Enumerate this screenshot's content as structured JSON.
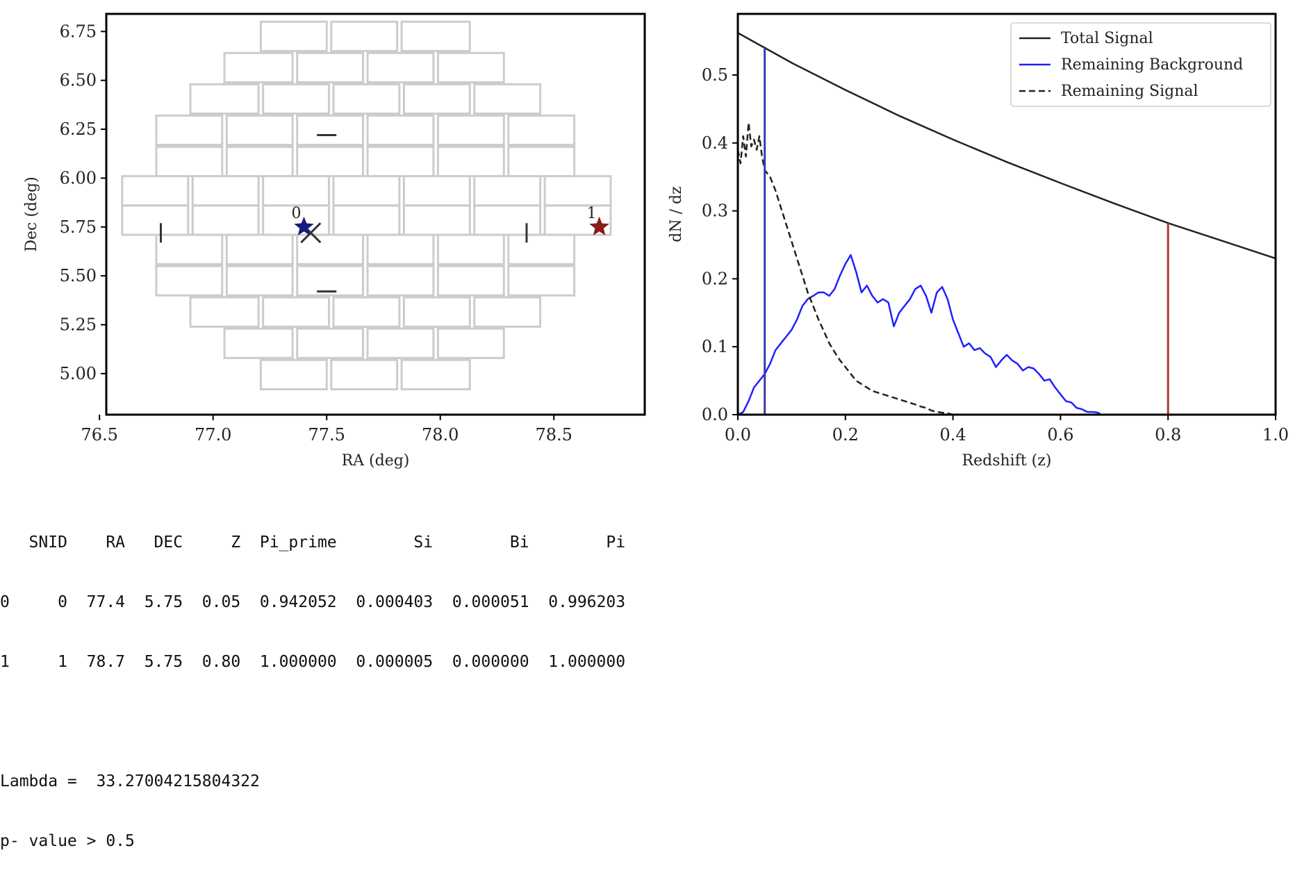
{
  "chart_data": [
    {
      "type": "scatter",
      "xlabel": "RA (deg)",
      "ylabel": "Dec (deg)",
      "xlim": [
        76.53,
        78.9
      ],
      "ylim": [
        4.79,
        6.84
      ],
      "xticks": [
        "76.5",
        "77.0",
        "77.5",
        "78.0",
        "78.5"
      ],
      "yticks": [
        "5.00",
        "5.25",
        "5.50",
        "5.75",
        "6.00",
        "6.25",
        "6.50",
        "6.75"
      ],
      "grid": false,
      "ccd_rows": [
        {
          "dec": [
            6.65,
            6.8
          ],
          "ra": [
            [
              77.21,
              77.5
            ],
            [
              77.52,
              77.81
            ],
            [
              77.83,
              78.13
            ]
          ]
        },
        {
          "dec": [
            6.49,
            6.64
          ],
          "ra": [
            [
              77.05,
              77.35
            ],
            [
              77.37,
              77.66
            ],
            [
              77.68,
              77.97
            ],
            [
              77.99,
              78.28
            ]
          ]
        },
        {
          "dec": [
            6.33,
            6.48
          ],
          "ra": [
            [
              76.9,
              77.2
            ],
            [
              77.22,
              77.51
            ],
            [
              77.53,
              77.82
            ],
            [
              77.84,
              78.13
            ],
            [
              78.15,
              78.44
            ]
          ]
        },
        {
          "dec": [
            6.17,
            6.32
          ],
          "ra": [
            [
              76.75,
              77.04
            ],
            [
              77.06,
              77.35
            ],
            [
              77.37,
              77.66
            ],
            [
              77.68,
              77.97
            ],
            [
              77.99,
              78.28
            ],
            [
              78.3,
              78.59
            ]
          ]
        },
        {
          "dec": [
            6.01,
            6.16
          ],
          "ra": [
            [
              76.75,
              77.04
            ],
            [
              77.06,
              77.35
            ],
            [
              77.37,
              77.66
            ],
            [
              77.68,
              77.97
            ],
            [
              77.99,
              78.28
            ],
            [
              78.3,
              78.59
            ]
          ]
        },
        {
          "dec": [
            5.86,
            6.01
          ],
          "ra": [
            [
              76.6,
              76.89
            ],
            [
              76.91,
              77.2
            ],
            [
              77.22,
              77.51
            ],
            [
              77.53,
              77.82
            ],
            [
              77.84,
              78.13
            ],
            [
              78.15,
              78.44
            ],
            [
              78.46,
              78.75
            ]
          ]
        },
        {
          "dec": [
            5.71,
            5.86
          ],
          "ra": [
            [
              76.6,
              76.89
            ],
            [
              76.91,
              77.2
            ],
            [
              77.22,
              77.51
            ],
            [
              77.53,
              77.82
            ],
            [
              77.84,
              78.13
            ],
            [
              78.15,
              78.44
            ],
            [
              78.46,
              78.75
            ]
          ]
        },
        {
          "dec": [
            5.56,
            5.71
          ],
          "ra": [
            [
              76.75,
              77.04
            ],
            [
              77.06,
              77.35
            ],
            [
              77.37,
              77.66
            ],
            [
              77.68,
              77.97
            ],
            [
              77.99,
              78.28
            ],
            [
              78.3,
              78.59
            ]
          ]
        },
        {
          "dec": [
            5.4,
            5.55
          ],
          "ra": [
            [
              76.75,
              77.04
            ],
            [
              77.06,
              77.35
            ],
            [
              77.37,
              77.66
            ],
            [
              77.68,
              77.97
            ],
            [
              77.99,
              78.28
            ],
            [
              78.3,
              78.59
            ]
          ]
        },
        {
          "dec": [
            5.24,
            5.39
          ],
          "ra": [
            [
              76.9,
              77.2
            ],
            [
              77.22,
              77.51
            ],
            [
              77.53,
              77.82
            ],
            [
              77.84,
              78.13
            ],
            [
              78.15,
              78.44
            ]
          ]
        },
        {
          "dec": [
            5.08,
            5.23
          ],
          "ra": [
            [
              77.05,
              77.35
            ],
            [
              77.37,
              77.66
            ],
            [
              77.68,
              77.97
            ],
            [
              77.99,
              78.28
            ]
          ]
        },
        {
          "dec": [
            4.92,
            5.07
          ],
          "ra": [
            [
              77.21,
              77.5
            ],
            [
              77.52,
              77.81
            ],
            [
              77.83,
              78.13
            ]
          ]
        }
      ],
      "ccd_color": "#cccccc",
      "ticks_marks": [
        {
          "orientation": "h",
          "ra": 77.5,
          "dec": 6.22
        },
        {
          "orientation": "h",
          "ra": 77.5,
          "dec": 5.42
        },
        {
          "orientation": "v",
          "ra": 76.77,
          "dec": 5.72
        },
        {
          "orientation": "v",
          "ra": 78.38,
          "dec": 5.72
        }
      ],
      "center_marker": {
        "ra": 77.43,
        "dec": 5.72,
        "shape": "x",
        "color": "#333333"
      },
      "sources": [
        {
          "label": "0",
          "ra": 77.4,
          "dec": 5.75,
          "color": "#1a1a80"
        },
        {
          "label": "1",
          "ra": 78.7,
          "dec": 5.75,
          "color": "#8b1a1a"
        }
      ]
    },
    {
      "type": "line",
      "xlabel": "Redshift (z)",
      "ylabel": "dN / dz",
      "xlim": [
        0.0,
        1.0
      ],
      "ylim": [
        0.0,
        0.59
      ],
      "xticks": [
        "0.0",
        "0.2",
        "0.4",
        "0.6",
        "0.8",
        "1.0"
      ],
      "yticks": [
        "0.0",
        "0.1",
        "0.2",
        "0.3",
        "0.4",
        "0.5"
      ],
      "grid": false,
      "legend_position": "top-right",
      "series": [
        {
          "name": "Total Signal",
          "color": "#222222",
          "style": "solid",
          "x": [
            0.0,
            0.1,
            0.2,
            0.3,
            0.4,
            0.5,
            0.6,
            0.7,
            0.8,
            0.9,
            1.0
          ],
          "y": [
            0.562,
            0.518,
            0.478,
            0.44,
            0.405,
            0.372,
            0.341,
            0.311,
            0.282,
            0.256,
            0.23
          ]
        },
        {
          "name": "Remaining Background",
          "color": "#1f1fff",
          "style": "solid",
          "x": [
            0.0,
            0.01,
            0.02,
            0.03,
            0.04,
            0.05,
            0.06,
            0.07,
            0.08,
            0.09,
            0.1,
            0.11,
            0.12,
            0.13,
            0.14,
            0.15,
            0.16,
            0.17,
            0.18,
            0.19,
            0.2,
            0.21,
            0.22,
            0.23,
            0.24,
            0.25,
            0.26,
            0.27,
            0.28,
            0.29,
            0.3,
            0.31,
            0.32,
            0.33,
            0.34,
            0.35,
            0.36,
            0.37,
            0.38,
            0.39,
            0.4,
            0.41,
            0.42,
            0.43,
            0.44,
            0.45,
            0.46,
            0.47,
            0.48,
            0.49,
            0.5,
            0.51,
            0.52,
            0.53,
            0.54,
            0.55,
            0.56,
            0.57,
            0.58,
            0.59,
            0.6,
            0.61,
            0.62,
            0.63,
            0.64,
            0.65,
            0.66,
            0.67,
            0.675
          ],
          "y": [
            0.0,
            0.004,
            0.02,
            0.04,
            0.05,
            0.06,
            0.075,
            0.095,
            0.105,
            0.115,
            0.125,
            0.14,
            0.16,
            0.17,
            0.175,
            0.18,
            0.18,
            0.175,
            0.185,
            0.205,
            0.222,
            0.235,
            0.21,
            0.18,
            0.19,
            0.175,
            0.165,
            0.17,
            0.165,
            0.13,
            0.15,
            0.16,
            0.17,
            0.185,
            0.19,
            0.175,
            0.15,
            0.18,
            0.188,
            0.17,
            0.14,
            0.12,
            0.1,
            0.105,
            0.095,
            0.098,
            0.09,
            0.085,
            0.07,
            0.08,
            0.088,
            0.08,
            0.075,
            0.065,
            0.07,
            0.068,
            0.06,
            0.05,
            0.052,
            0.04,
            0.03,
            0.02,
            0.018,
            0.01,
            0.008,
            0.004,
            0.004,
            0.003,
            0.0
          ]
        },
        {
          "name": "Remaining Signal",
          "color": "#222222",
          "style": "dashed",
          "x": [
            0.0,
            0.005,
            0.01,
            0.015,
            0.02,
            0.025,
            0.03,
            0.035,
            0.04,
            0.045,
            0.05,
            0.06,
            0.07,
            0.08,
            0.09,
            0.1,
            0.11,
            0.12,
            0.13,
            0.14,
            0.15,
            0.16,
            0.17,
            0.18,
            0.19,
            0.2,
            0.21,
            0.22,
            0.23,
            0.24,
            0.25,
            0.27,
            0.29,
            0.31,
            0.33,
            0.34,
            0.35,
            0.36,
            0.37,
            0.38,
            0.39,
            0.4
          ],
          "y": [
            0.39,
            0.37,
            0.41,
            0.38,
            0.43,
            0.395,
            0.405,
            0.39,
            0.41,
            0.38,
            0.36,
            0.35,
            0.33,
            0.305,
            0.28,
            0.255,
            0.23,
            0.205,
            0.18,
            0.16,
            0.14,
            0.123,
            0.105,
            0.092,
            0.08,
            0.07,
            0.06,
            0.05,
            0.045,
            0.04,
            0.035,
            0.03,
            0.025,
            0.02,
            0.015,
            0.012,
            0.01,
            0.006,
            0.004,
            0.003,
            0.002,
            0.0
          ]
        }
      ],
      "vlines": [
        {
          "x": 0.05,
          "y0": 0.0,
          "y1": 0.542,
          "color": "#3a3aa8"
        },
        {
          "x": 0.8,
          "y0": 0.0,
          "y1": 0.282,
          "color": "#a83a3a"
        }
      ]
    }
  ],
  "output_lines": [
    "   SNID    RA   DEC     Z  Pi_prime        Si        Bi        Pi",
    "0     0  77.4  5.75  0.05  0.942052  0.000403  0.000051  0.996203",
    "1     1  78.7  5.75  0.80  1.000000  0.000005  0.000000  1.000000",
    "",
    "Lambda =  33.27004215804322",
    "p- value > 0.5"
  ]
}
